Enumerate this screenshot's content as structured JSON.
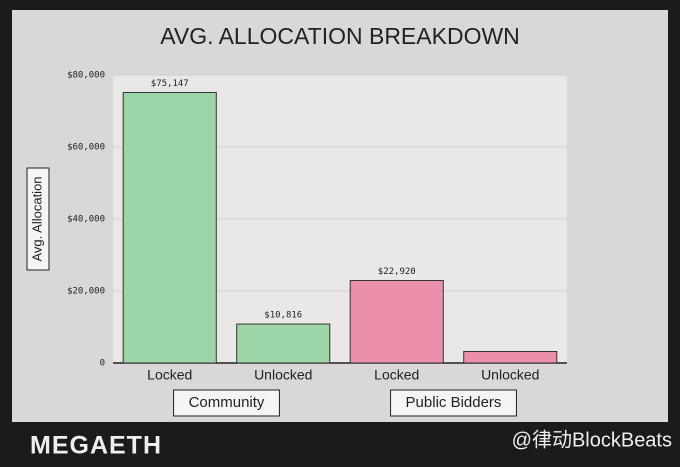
{
  "chart_data": {
    "type": "bar",
    "title": "AVG. ALLOCATION BREAKDOWN",
    "y_label": "Avg. Allocation",
    "categories": [
      "Locked",
      "Unlocked",
      "Locked",
      "Unlocked"
    ],
    "groups": [
      "Community",
      "Public Bidders"
    ],
    "values": [
      75147,
      10816,
      22920,
      3200
    ],
    "value_labels": [
      "$75,147",
      "$10,816",
      "$22,920",
      null
    ],
    "colors": [
      "#9dd6a6",
      "#9dd6a6",
      "#ec8fab",
      "#ec8fab"
    ],
    "ylim": [
      0,
      80000
    ],
    "yticks": [
      0,
      {
        "value": 20000,
        "label": "$20,000"
      },
      {
        "value": 40000,
        "label": "$40,000"
      },
      {
        "value": 60000,
        "label": "$60,000"
      },
      {
        "value": 80000,
        "label": "$80,000"
      }
    ],
    "grid": true
  },
  "footer": {
    "logo": "MEGAETH",
    "watermark": "@律动BlockBeats"
  }
}
